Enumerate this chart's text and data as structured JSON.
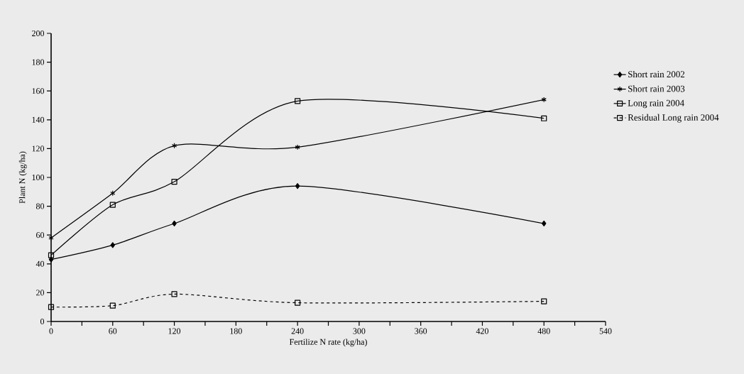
{
  "chart_data": {
    "type": "line",
    "xlabel": "Fertilize N rate (kg/ha)",
    "ylabel": "Plant N (kg/ha)",
    "x": [
      0,
      60,
      120,
      240,
      480
    ],
    "series": [
      {
        "name": "Short rain 2002",
        "color": "#000000",
        "marker": "diamond",
        "line_style": "solid",
        "values": [
          43,
          53,
          68,
          94,
          68
        ]
      },
      {
        "name": "Short rain 2003",
        "color": "#000000",
        "marker": "cross",
        "line_style": "solid",
        "values": [
          58,
          89,
          122,
          121,
          154
        ]
      },
      {
        "name": "Long rain 2004",
        "color": "#000000",
        "marker": "square",
        "line_style": "solid",
        "values": [
          46,
          81,
          97,
          153,
          141
        ]
      },
      {
        "name": "Residual Long rain 2004",
        "color": "#000000",
        "marker": "square",
        "line_style": "dashed",
        "values": [
          10,
          11,
          19,
          13,
          14
        ]
      }
    ],
    "xlim": [
      0,
      540
    ],
    "ylim": [
      0,
      200
    ],
    "xticks": [
      0,
      {
        "value": 30,
        "label": null
      },
      60,
      {
        "value": 90,
        "label": null
      },
      120,
      {
        "value": 150,
        "label": null
      },
      180,
      {
        "value": 210,
        "label": null
      },
      240,
      {
        "value": 270,
        "label": null
      },
      300,
      {
        "value": 330,
        "label": null
      },
      360,
      {
        "value": 390,
        "label": null
      },
      420,
      {
        "value": 450,
        "label": null
      },
      480,
      {
        "value": 510,
        "label": null
      },
      540
    ],
    "yticks": [
      0,
      20,
      40,
      60,
      80,
      100,
      120,
      140,
      160,
      180,
      200
    ],
    "grid": false,
    "legend": "right"
  }
}
